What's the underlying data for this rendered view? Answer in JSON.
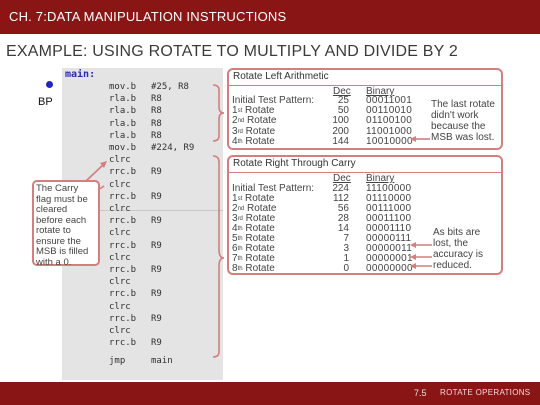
{
  "slide": {
    "title": "CH. 7:DATA MANIPULATION INSTRUCTIONS",
    "heading": "EXAMPLE: USING ROTATE TO MULTIPLY AND DIVIDE BY 2",
    "breakpoint_label": "BP",
    "page_number": "7.5",
    "section": "ROTATE OPERATIONS"
  },
  "code": {
    "label": "main:",
    "lines": [
      {
        "op": "mov.b",
        "arg": "#25, R8"
      },
      {
        "op": "rla.b",
        "arg": "R8"
      },
      {
        "op": "rla.b",
        "arg": "R8"
      },
      {
        "op": "rla.b",
        "arg": "R8"
      },
      {
        "op": "rla.b",
        "arg": "R8"
      },
      {
        "op": "mov.b",
        "arg": "#224, R9"
      },
      {
        "op": "clrc",
        "arg": ""
      },
      {
        "op": "rrc.b",
        "arg": "R9"
      },
      {
        "op": "clrc",
        "arg": ""
      },
      {
        "op": "rrc.b",
        "arg": "R9"
      },
      {
        "op": "clrc",
        "arg": ""
      },
      {
        "op": "rrc.b",
        "arg": "R9"
      },
      {
        "op": "clrc",
        "arg": ""
      },
      {
        "op": "rrc.b",
        "arg": "R9"
      },
      {
        "op": "clrc",
        "arg": ""
      },
      {
        "op": "rrc.b",
        "arg": "R9"
      },
      {
        "op": "clrc",
        "arg": ""
      },
      {
        "op": "rrc.b",
        "arg": "R9"
      },
      {
        "op": "clrc",
        "arg": ""
      },
      {
        "op": "rrc.b",
        "arg": "R9"
      },
      {
        "op": "clrc",
        "arg": ""
      },
      {
        "op": "rrc.b",
        "arg": "R9"
      },
      {
        "op": "jmp",
        "arg": "main"
      }
    ]
  },
  "rotate_left": {
    "title": "Rotate Left Arithmetic",
    "dec_header": "Dec",
    "bin_header": "Binary",
    "rows": [
      {
        "label": "Initial Test Pattern:",
        "ord": "",
        "dec": "25",
        "bin": "00011001"
      },
      {
        "label": "1",
        "ord": "st",
        "suffix": " Rotate",
        "dec": "50",
        "bin": "00110010"
      },
      {
        "label": "2",
        "ord": "nd",
        "suffix": " Rotate",
        "dec": "100",
        "bin": "01100100"
      },
      {
        "label": "3",
        "ord": "rd",
        "suffix": " Rotate",
        "dec": "200",
        "bin": "11001000"
      },
      {
        "label": "4",
        "ord": "th",
        "suffix": " Rotate",
        "dec": "144",
        "bin": "10010000"
      }
    ],
    "note": [
      "The last rotate",
      "didn't work",
      "because the",
      "MSB was lost."
    ]
  },
  "rotate_right": {
    "title": "Rotate Right Through Carry",
    "dec_header": "Dec",
    "bin_header": "Binary",
    "rows": [
      {
        "label": "Initial Test Pattern:",
        "ord": "",
        "dec": "224",
        "bin": "11100000"
      },
      {
        "label": "1",
        "ord": "st",
        "suffix": " Rotate",
        "dec": "112",
        "bin": "01110000"
      },
      {
        "label": "2",
        "ord": "nd",
        "suffix": " Rotate",
        "dec": "56",
        "bin": "00111000"
      },
      {
        "label": "3",
        "ord": "rd",
        "suffix": " Rotate",
        "dec": "28",
        "bin": "00011100"
      },
      {
        "label": "4",
        "ord": "th",
        "suffix": " Rotate",
        "dec": "14",
        "bin": "00001110"
      },
      {
        "label": "5",
        "ord": "th",
        "suffix": " Rotate",
        "dec": "7",
        "bin": "00000111"
      },
      {
        "label": "6",
        "ord": "th",
        "suffix": " Rotate",
        "dec": "3",
        "bin": "00000011"
      },
      {
        "label": "7",
        "ord": "th",
        "suffix": " Rotate",
        "dec": "1",
        "bin": "00000001"
      },
      {
        "label": "8",
        "ord": "th",
        "suffix": " Rotate",
        "dec": "0",
        "bin": "00000000"
      }
    ],
    "note": [
      "As bits are",
      "lost, the",
      "accuracy is",
      "reduced."
    ]
  },
  "carry_note": [
    "The Carry",
    "flag must be",
    "cleared",
    "before each",
    "rotate to",
    "ensure the",
    "MSB is filled",
    "with a 0."
  ],
  "colors": {
    "bar": "#8a1515",
    "box_border": "#d47e7e",
    "code_bg": "#e4e4e4",
    "breakpoint": "#2323c8"
  }
}
